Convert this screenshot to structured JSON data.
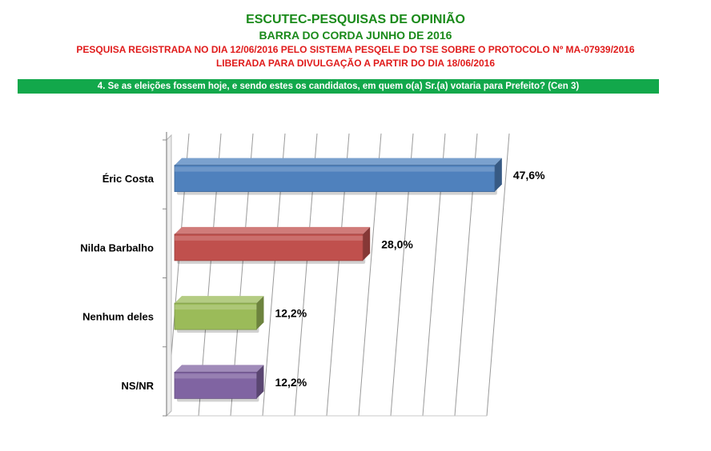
{
  "header": {
    "title": "ESCUTEC-PESQUISAS DE OPINIÃO",
    "subtitle": "BARRA DO CORDA JUNHO DE 2016",
    "registration": "PESQUISA REGISTRADA NO DIA 12/06/2016 PELO SISTEMA PESQELE DO TSE SOBRE O PROTOCOLO Nº MA-07939/2016",
    "release": "LIBERADA PARA DIVULGAÇÃO A PARTIR DO DIA 18/06/2016"
  },
  "question": "4. Se as eleições fossem hoje, e sendo estes os candidatos, em quem o(a) Sr.(a) votaria para Prefeito? (Cen 3)",
  "colors": {
    "title": "#1a8a1a",
    "notice": "#e01b1b",
    "question_bar": "#12a84b"
  },
  "chart_data": {
    "type": "bar",
    "orientation": "horizontal",
    "categories": [
      "Éric Costa",
      "Nilda Barbalho",
      "Nenhum deles",
      "NS/NR"
    ],
    "values": [
      47.6,
      28.0,
      12.2,
      12.2
    ],
    "value_labels": [
      "47,6%",
      "28,0%",
      "12,2%",
      "12,2%"
    ],
    "bar_colors": [
      "#4f81bd",
      "#c0504d",
      "#9bbb59",
      "#8064a2"
    ],
    "xlim": [
      0,
      50
    ],
    "grid": true,
    "legend": "none"
  }
}
